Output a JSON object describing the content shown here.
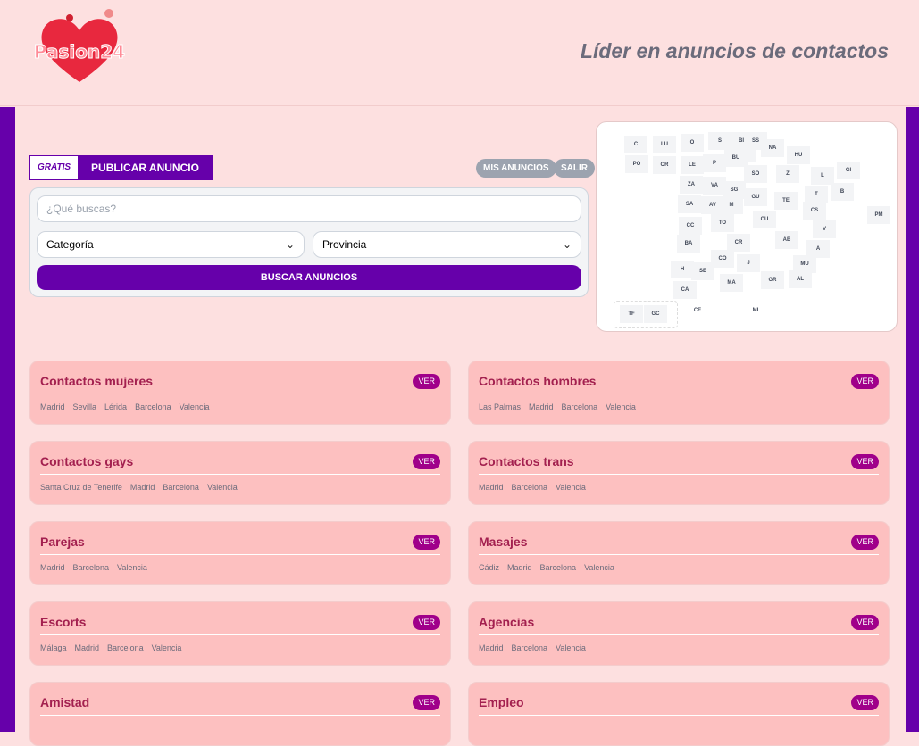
{
  "header": {
    "logo_text": "Pasion24",
    "tagline": "Líder en anuncios de contactos"
  },
  "publish": {
    "gratis": "GRATIS",
    "label": "PUBLICAR ANUNCIO"
  },
  "account": {
    "my_ads": "MIS ANUNCIOS",
    "logout": "SALIR"
  },
  "search": {
    "placeholder": "¿Qué buscas?",
    "category": "Categoría",
    "province": "Provincia",
    "button": "BUSCAR ANUNCIOS"
  },
  "map": {
    "provinces": [
      "C",
      "LU",
      "O",
      "S",
      "BI",
      "SS",
      "NA",
      "HU",
      "VI",
      "BU",
      "PO",
      "OR",
      "LE",
      "P",
      "SO",
      "Z",
      "L",
      "GI",
      "B",
      "ZA",
      "VA",
      "SG",
      "GU",
      "TE",
      "T",
      "CS",
      "SA",
      "AV",
      "M",
      "CU",
      "PM",
      "CC",
      "TO",
      "V",
      "BA",
      "CR",
      "AB",
      "A",
      "CO",
      "J",
      "MU",
      "H",
      "SE",
      "MA",
      "GR",
      "AL",
      "CA",
      "TF",
      "GC",
      "CE",
      "ML"
    ]
  },
  "cards": [
    {
      "title": "Contactos mujeres",
      "ver": "VER",
      "cities": [
        "Madrid",
        "Sevilla",
        "Lérida",
        "Barcelona",
        "Valencia"
      ]
    },
    {
      "title": "Contactos hombres",
      "ver": "VER",
      "cities": [
        "Las Palmas",
        "Madrid",
        "Barcelona",
        "Valencia"
      ]
    },
    {
      "title": "Contactos gays",
      "ver": "VER",
      "cities": [
        "Santa Cruz de Tenerife",
        "Madrid",
        "Barcelona",
        "Valencia"
      ]
    },
    {
      "title": "Contactos trans",
      "ver": "VER",
      "cities": [
        "Madrid",
        "Barcelona",
        "Valencia"
      ]
    },
    {
      "title": "Parejas",
      "ver": "VER",
      "cities": [
        "Madrid",
        "Barcelona",
        "Valencia"
      ]
    },
    {
      "title": "Masajes",
      "ver": "VER",
      "cities": [
        "Cádiz",
        "Madrid",
        "Barcelona",
        "Valencia"
      ]
    },
    {
      "title": "Escorts",
      "ver": "VER",
      "cities": [
        "Málaga",
        "Madrid",
        "Barcelona",
        "Valencia"
      ]
    },
    {
      "title": "Agencias",
      "ver": "VER",
      "cities": [
        "Madrid",
        "Barcelona",
        "Valencia"
      ]
    },
    {
      "title": "Amistad",
      "ver": "VER",
      "cities": []
    },
    {
      "title": "Empleo",
      "ver": "VER",
      "cities": []
    }
  ]
}
